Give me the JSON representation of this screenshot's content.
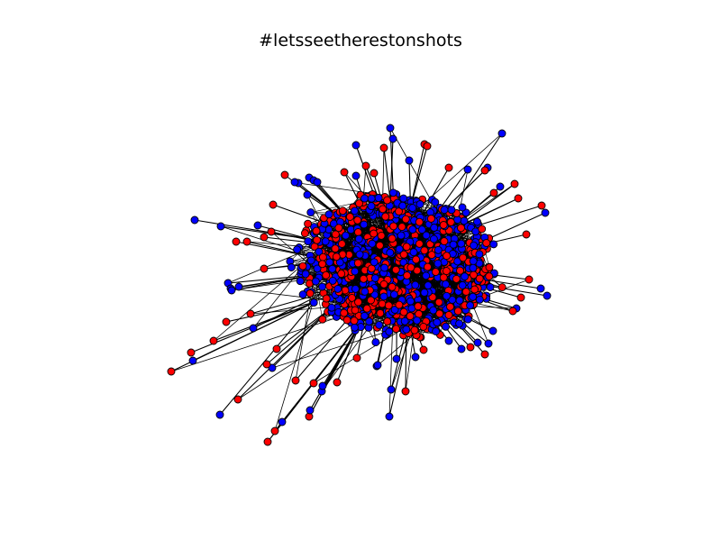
{
  "title": "#letsseetherestonshots",
  "graph": {
    "node_colors": {
      "group_a": "#ff0000",
      "group_b": "#0000ff"
    },
    "edge_color": "#000000",
    "node_outline": "#000000"
  }
}
